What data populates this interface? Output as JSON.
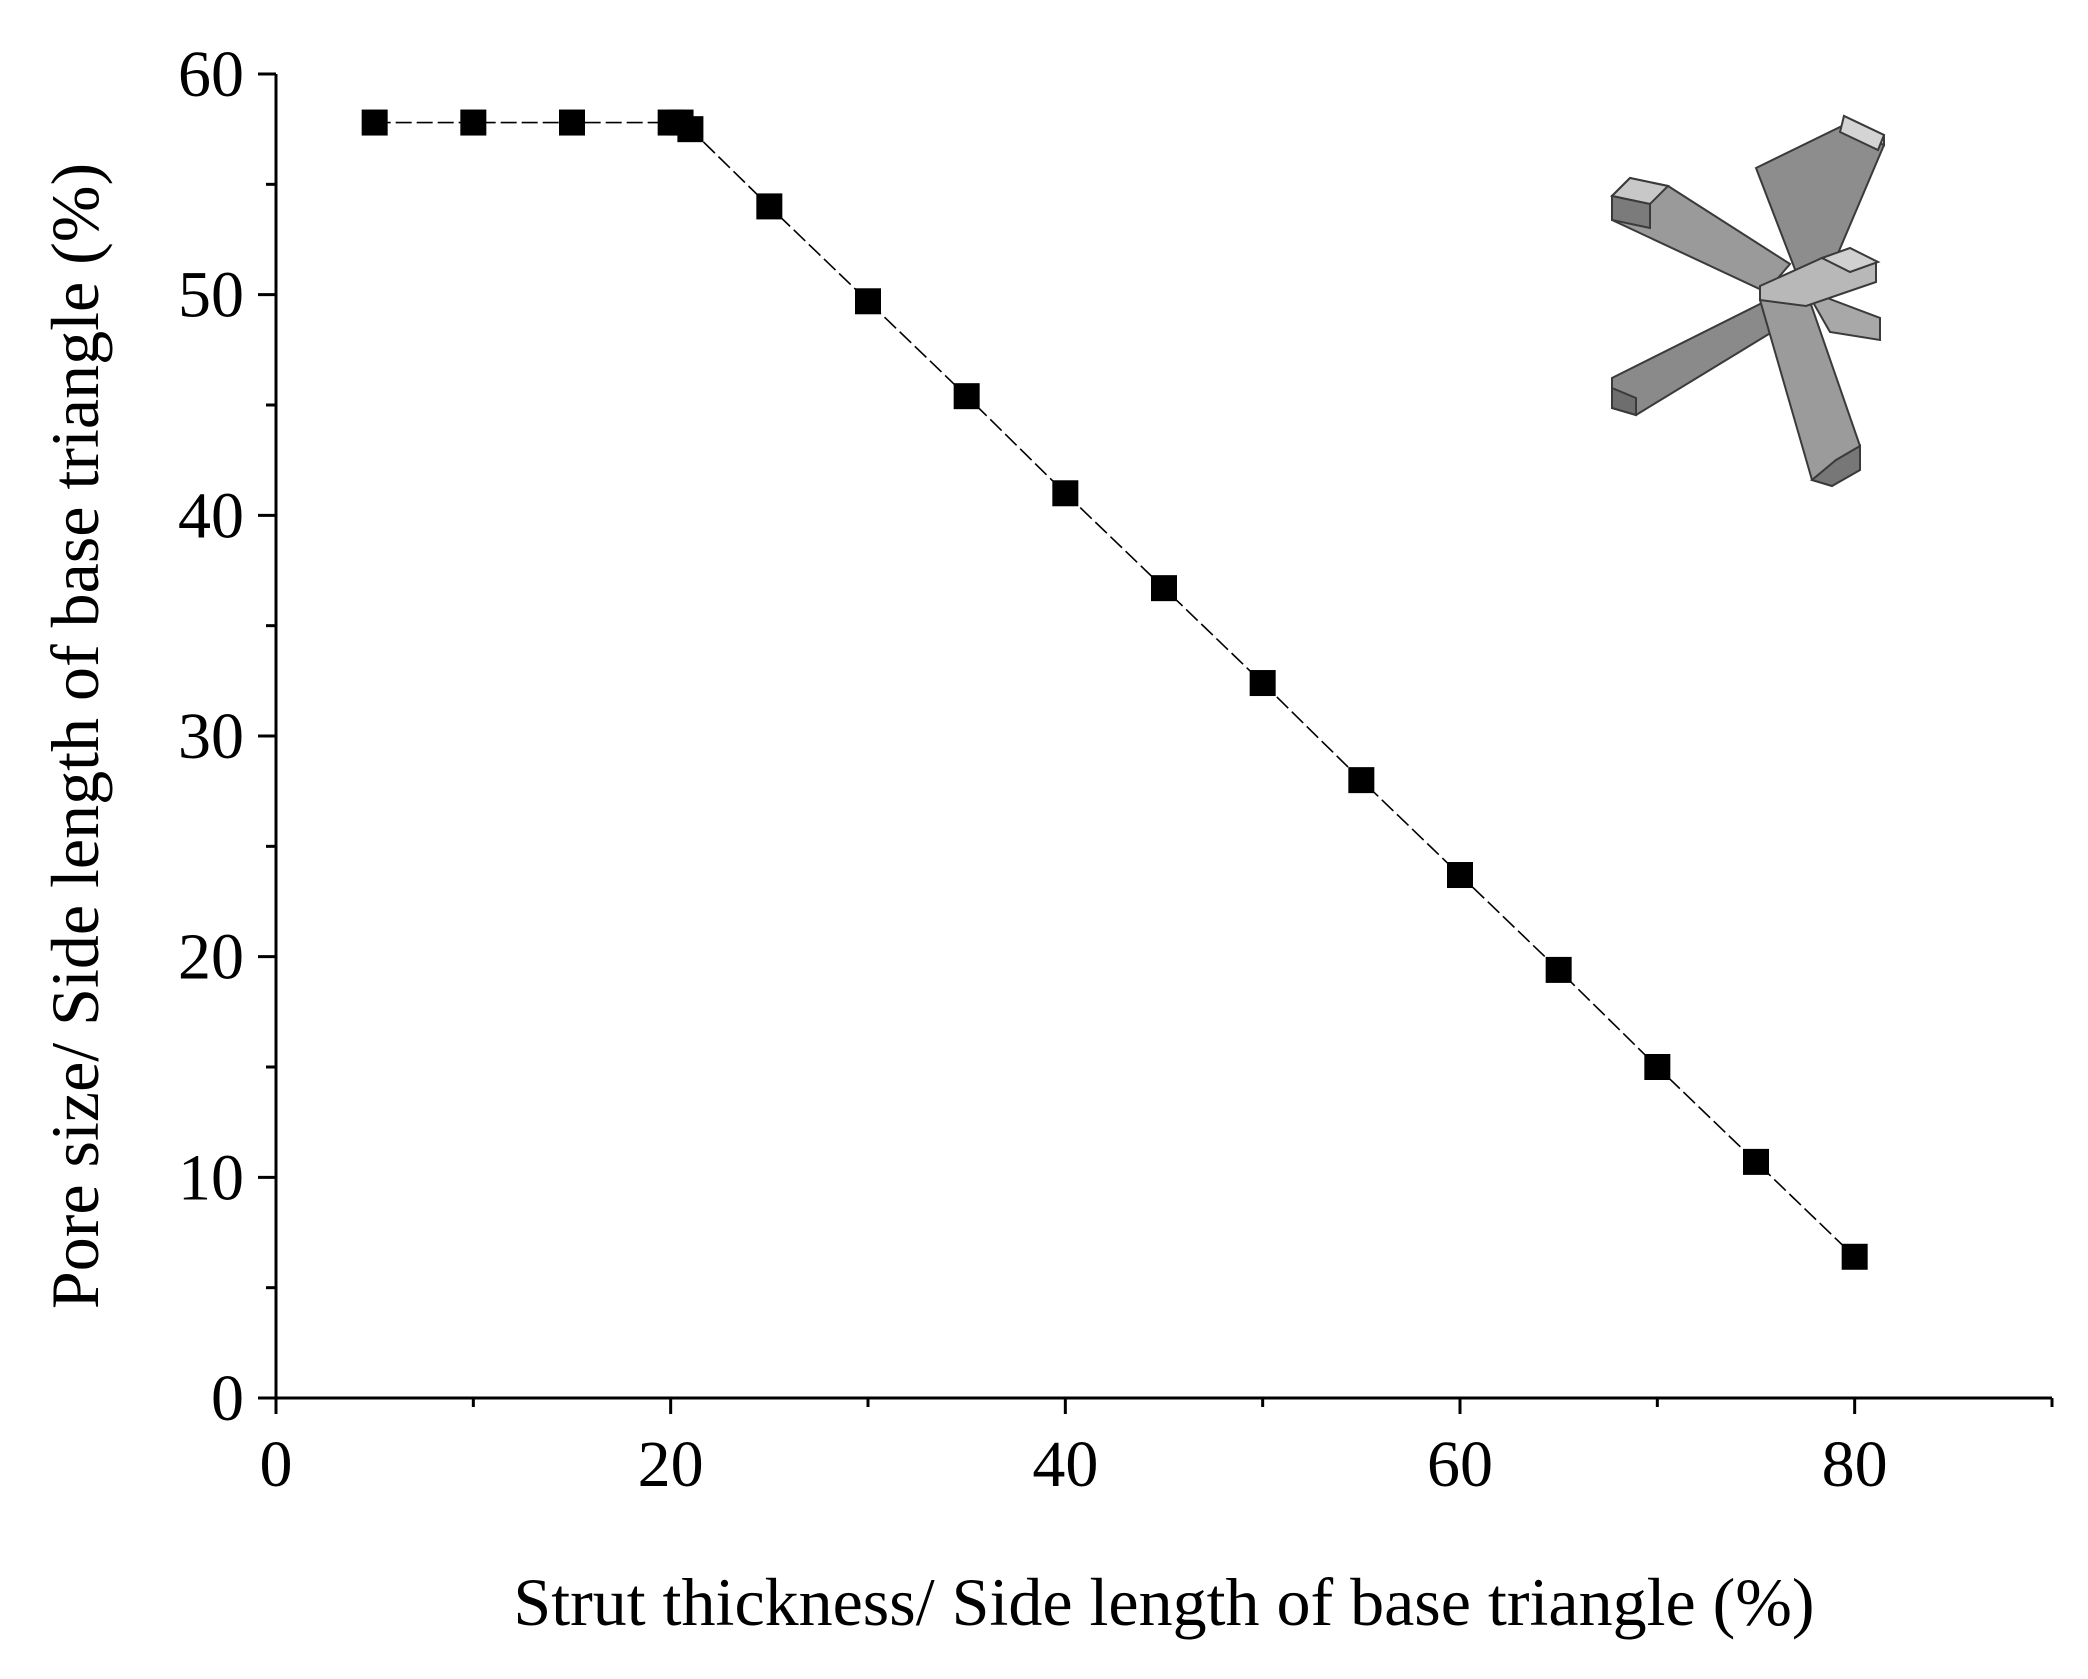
{
  "chart_data": {
    "type": "line",
    "marker": "square",
    "xlabel": "Strut thickness/ Side length of base triangle (%)",
    "ylabel": "Pore size/ Side length of base triangle (%)",
    "xlim": [
      0,
      90
    ],
    "ylim": [
      0,
      60
    ],
    "x_ticks": [
      "0",
      "20",
      "40",
      "60",
      "80"
    ],
    "y_ticks": [
      "0",
      "10",
      "20",
      "30",
      "40",
      "50",
      "60"
    ],
    "grid": false,
    "legend": "none",
    "series": [
      {
        "x": [
          5,
          10,
          15,
          20,
          20.5,
          21,
          25,
          30,
          35,
          40,
          45,
          50,
          55,
          60,
          65,
          70,
          75,
          80
        ],
        "y": [
          57.8,
          57.8,
          57.8,
          57.8,
          57.8,
          57.5,
          54.0,
          49.7,
          45.4,
          41.0,
          36.7,
          32.4,
          28.0,
          23.7,
          19.4,
          15.0,
          10.7,
          6.4
        ],
        "color": "#000000"
      }
    ],
    "inset": "tetrapod-strut-unit-cell"
  }
}
